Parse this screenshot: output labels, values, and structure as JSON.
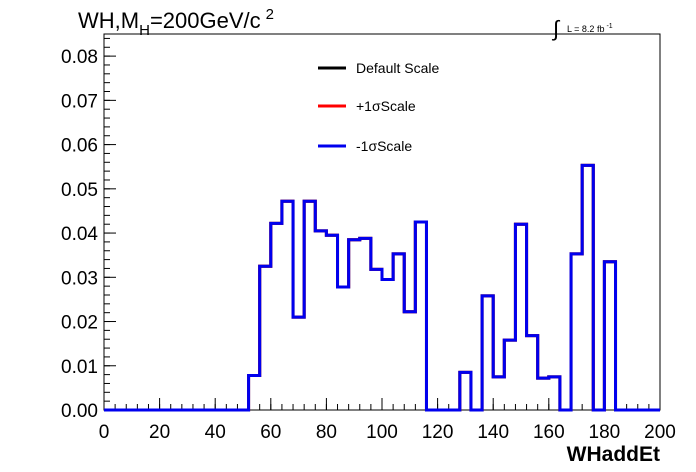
{
  "chart_data": {
    "type": "line",
    "title": {
      "main": "WH,M",
      "sub": "H",
      "mass": "=200GeV/c",
      "sup": "2"
    },
    "lumi": {
      "integral_symbol": "∫",
      "text": "L = 8.2 fb",
      "sup": "-1"
    },
    "xlabel": "WHaddEt",
    "ylabel": "",
    "xlim": [
      0,
      200
    ],
    "ylim": [
      0,
      0.085
    ],
    "x_ticks": [
      "0",
      "20",
      "40",
      "60",
      "80",
      "100",
      "120",
      "140",
      "160",
      "180",
      "200"
    ],
    "y_ticks": [
      "0.00",
      "0.01",
      "0.02",
      "0.03",
      "0.04",
      "0.05",
      "0.06",
      "0.07",
      "0.08"
    ],
    "bin_width": 4,
    "bin_edges_start": 0,
    "series": [
      {
        "name": "Default Scale",
        "color": "#000000",
        "values": [
          0,
          0,
          0,
          0,
          0,
          0,
          0,
          0,
          0,
          0,
          0,
          0,
          0,
          0.0078,
          0.0325,
          0.0422,
          0.0472,
          0.021,
          0.0472,
          0.0405,
          0.0395,
          0.0278,
          0.0385,
          0.0388,
          0.0318,
          0.0295,
          0.0353,
          0.0222,
          0.0425,
          0,
          0,
          0,
          0.0085,
          0,
          0.0258,
          0.0075,
          0.0158,
          0.042,
          0.0168,
          0.0072,
          0.0075,
          0,
          0.0353,
          0.0553,
          0,
          0.0335,
          0,
          0,
          0,
          0
        ]
      },
      {
        "name": "+1σScale",
        "color": "#ff0000",
        "values": [
          0,
          0,
          0,
          0,
          0,
          0,
          0,
          0,
          0,
          0,
          0,
          0,
          0,
          0.0078,
          0.0325,
          0.0422,
          0.0472,
          0.021,
          0.0472,
          0.0405,
          0.0395,
          0.0278,
          0.0385,
          0.0388,
          0.0318,
          0.0295,
          0.0353,
          0.0222,
          0.0425,
          0,
          0,
          0,
          0.0085,
          0,
          0.0258,
          0.0075,
          0.0158,
          0.042,
          0.0168,
          0.0072,
          0.0075,
          0,
          0.0353,
          0.0553,
          0,
          0.0335,
          0,
          0,
          0,
          0
        ]
      },
      {
        "name": "-1σScale",
        "color": "#0000ee",
        "values": [
          0,
          0,
          0,
          0,
          0,
          0,
          0,
          0,
          0,
          0,
          0,
          0,
          0,
          0.0078,
          0.0325,
          0.0422,
          0.0472,
          0.021,
          0.0472,
          0.0405,
          0.0395,
          0.0278,
          0.0385,
          0.0388,
          0.0318,
          0.0295,
          0.0353,
          0.0222,
          0.0425,
          0,
          0,
          0,
          0.0085,
          0,
          0.0258,
          0.0075,
          0.0158,
          0.042,
          0.0168,
          0.0072,
          0.0075,
          0,
          0.0353,
          0.0553,
          0,
          0.0335,
          0,
          0,
          0,
          0
        ]
      }
    ],
    "legend_position": "top-center",
    "grid": false
  }
}
